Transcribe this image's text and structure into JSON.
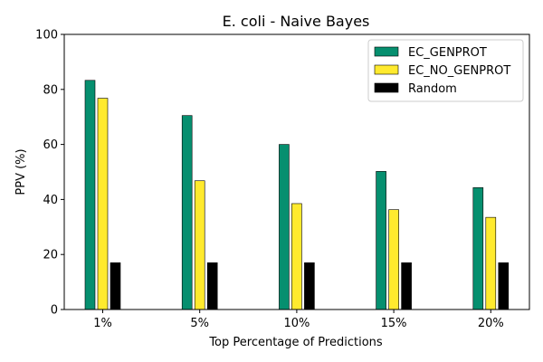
{
  "chart_data": {
    "type": "bar",
    "title": "E. coli - Naive Bayes",
    "xlabel": "Top Percentage of Predictions",
    "ylabel": "PPV (%)",
    "ylim": [
      0,
      100
    ],
    "yticks": [
      0,
      20,
      40,
      60,
      80,
      100
    ],
    "categories": [
      "1%",
      "5%",
      "10%",
      "15%",
      "20%"
    ],
    "series": [
      {
        "name": "EC_GENPROT",
        "values": [
          83.3,
          70.5,
          60.0,
          50.2,
          44.3
        ],
        "color": "#068f6f"
      },
      {
        "name": "EC_NO_GENPROT",
        "values": [
          76.8,
          46.8,
          38.5,
          36.3,
          33.5
        ],
        "color": "#ffea2e"
      },
      {
        "name": "Random",
        "values": [
          17.0,
          17.0,
          17.0,
          17.0,
          17.0
        ],
        "color": "#000000"
      }
    ],
    "legend_position": "top-right",
    "grid": false
  }
}
